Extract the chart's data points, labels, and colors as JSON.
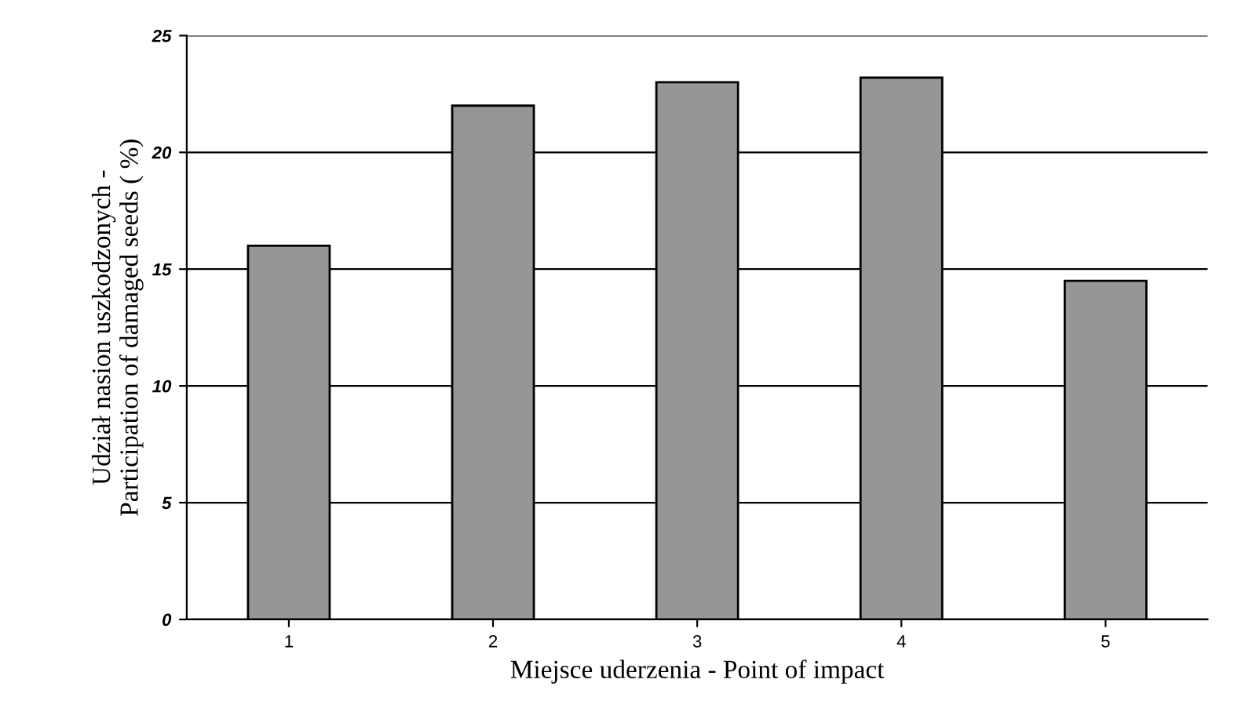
{
  "chart_data": {
    "type": "bar",
    "xlabel": "Miejsce uderzenia - Point of impact",
    "ylabel": "Udział nasion uszkodzonych -\nParticipation of damaged seeds ( %)",
    "categories": [
      "1",
      "2",
      "3",
      "4",
      "5"
    ],
    "values": [
      16,
      22,
      23,
      23.2,
      14.5
    ],
    "color": "#969696",
    "ylim": [
      0,
      25
    ],
    "yticks": [
      0,
      5,
      10,
      15,
      20,
      25
    ],
    "grid": "y"
  }
}
